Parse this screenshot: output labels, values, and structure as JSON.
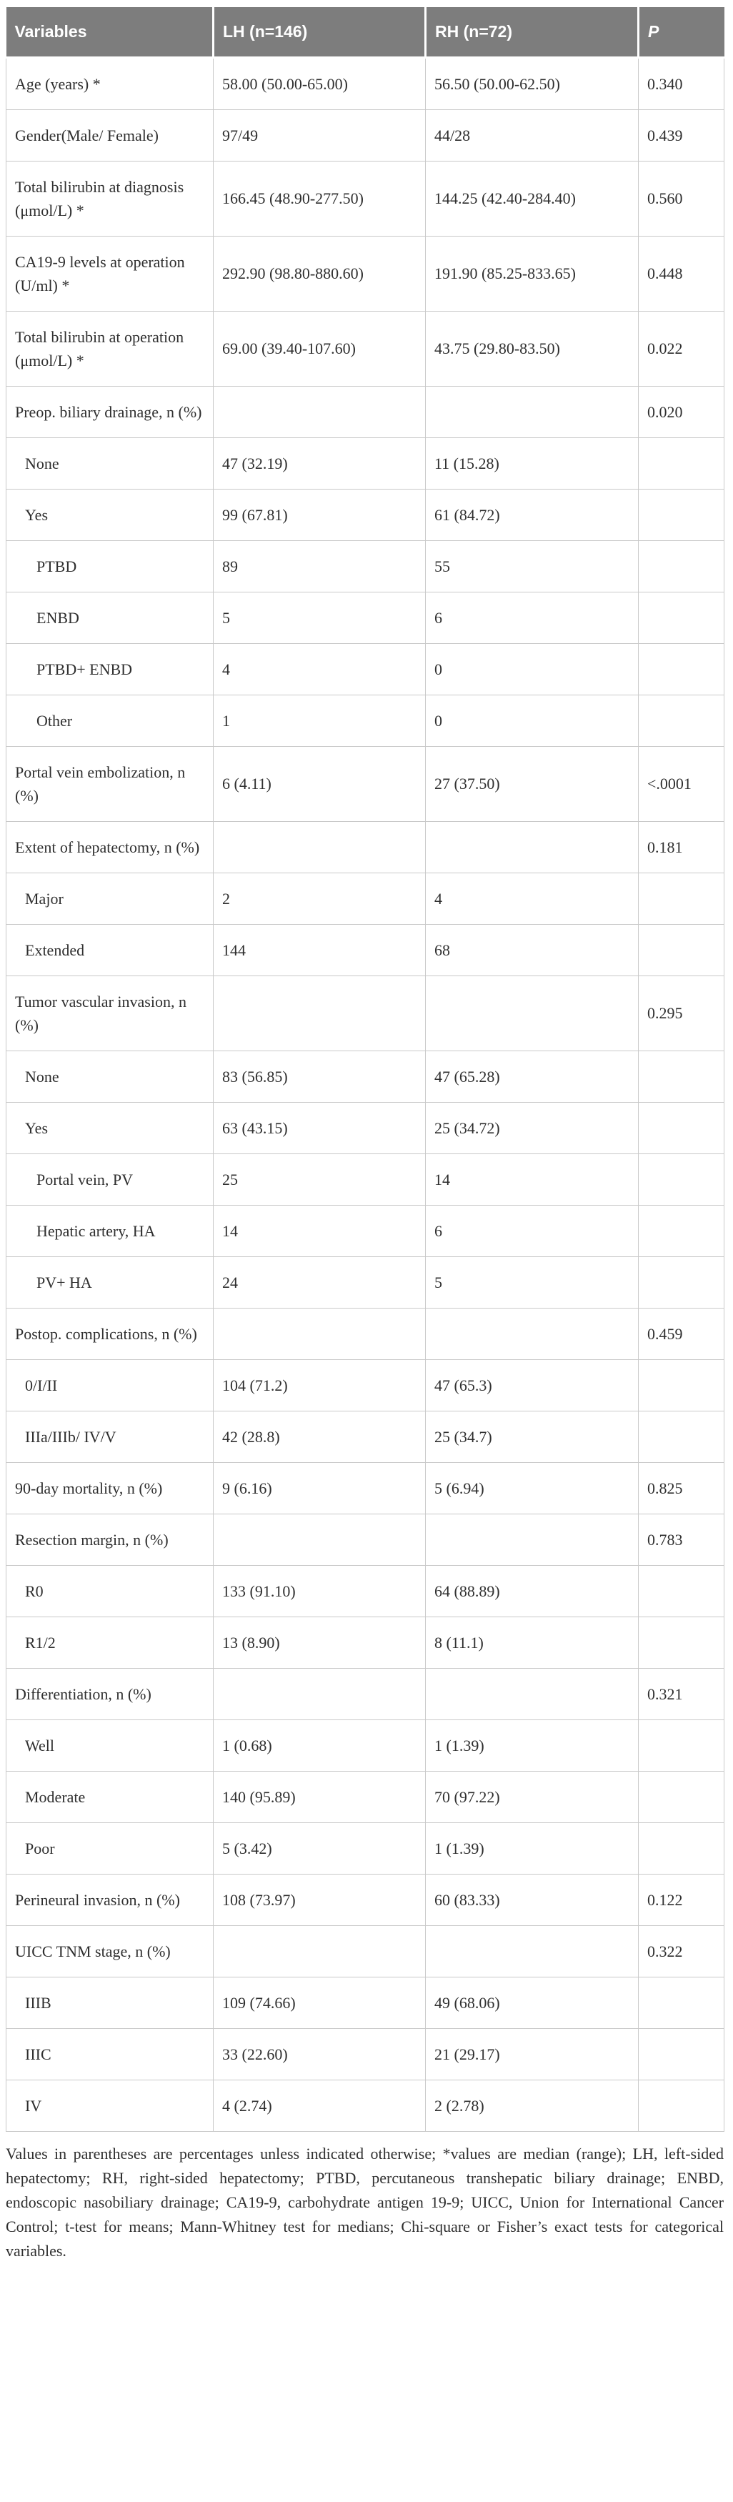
{
  "colors": {
    "header_bg": "#7d7d7d",
    "header_text": "#ffffff",
    "border": "#c9c9c9",
    "text": "#2f2f2f"
  },
  "table": {
    "columns": [
      "Variables",
      "LH (n=146)",
      "RH (n=72)",
      "P"
    ],
    "rows": [
      {
        "label": "Age (years) *",
        "indent": 0,
        "lh": "58.00 (50.00-65.00)",
        "rh": "56.50 (50.00-62.50)",
        "p": "0.340"
      },
      {
        "label": "Gender(Male/ Female)",
        "indent": 0,
        "lh": "97/49",
        "rh": "44/28",
        "p": "0.439"
      },
      {
        "label": "Total bilirubin at diagnosis (μmol/L) *",
        "indent": 0,
        "lh": "166.45 (48.90-277.50)",
        "rh": "144.25 (42.40-284.40)",
        "p": "0.560"
      },
      {
        "label": "CA19-9 levels at operation (U/ml) *",
        "indent": 0,
        "lh": "292.90 (98.80-880.60)",
        "rh": "191.90 (85.25-833.65)",
        "p": "0.448"
      },
      {
        "label": "Total bilirubin at operation (μmol/L) *",
        "indent": 0,
        "lh": "69.00 (39.40-107.60)",
        "rh": "43.75 (29.80-83.50)",
        "p": "0.022"
      },
      {
        "label": "Preop. biliary drainage, n (%)",
        "indent": 0,
        "lh": "",
        "rh": "",
        "p": "0.020"
      },
      {
        "label": "None",
        "indent": 1,
        "lh": "47 (32.19)",
        "rh": "11 (15.28)",
        "p": ""
      },
      {
        "label": "Yes",
        "indent": 1,
        "lh": "99 (67.81)",
        "rh": "61 (84.72)",
        "p": ""
      },
      {
        "label": "PTBD",
        "indent": 2,
        "lh": "89",
        "rh": "55",
        "p": ""
      },
      {
        "label": "ENBD",
        "indent": 2,
        "lh": "5",
        "rh": "6",
        "p": ""
      },
      {
        "label": "PTBD+ ENBD",
        "indent": 2,
        "lh": "4",
        "rh": "0",
        "p": ""
      },
      {
        "label": "Other",
        "indent": 2,
        "lh": "1",
        "rh": "0",
        "p": ""
      },
      {
        "label": "Portal vein embolization, n (%)",
        "indent": 0,
        "lh": "6 (4.11)",
        "rh": "27 (37.50)",
        "p": "<.0001"
      },
      {
        "label": "Extent of hepatectomy, n (%)",
        "indent": 0,
        "lh": "",
        "rh": "",
        "p": "0.181"
      },
      {
        "label": "Major",
        "indent": 1,
        "lh": "2",
        "rh": "4",
        "p": ""
      },
      {
        "label": "Extended",
        "indent": 1,
        "lh": "144",
        "rh": "68",
        "p": ""
      },
      {
        "label": "Tumor vascular invasion, n (%)",
        "indent": 0,
        "lh": "",
        "rh": "",
        "p": "0.295"
      },
      {
        "label": "None",
        "indent": 1,
        "lh": "83 (56.85)",
        "rh": "47 (65.28)",
        "p": ""
      },
      {
        "label": "Yes",
        "indent": 1,
        "lh": "63 (43.15)",
        "rh": "25 (34.72)",
        "p": ""
      },
      {
        "label": "Portal vein, PV",
        "indent": 2,
        "lh": "25",
        "rh": "14",
        "p": ""
      },
      {
        "label": "Hepatic artery, HA",
        "indent": 2,
        "lh": "14",
        "rh": "6",
        "p": ""
      },
      {
        "label": "PV+ HA",
        "indent": 2,
        "lh": "24",
        "rh": "5",
        "p": ""
      },
      {
        "label": "Postop. complications, n (%)",
        "indent": 0,
        "lh": "",
        "rh": "",
        "p": "0.459"
      },
      {
        "label": "0/I/II",
        "indent": 1,
        "lh": "104 (71.2)",
        "rh": "47 (65.3)",
        "p": ""
      },
      {
        "label": "IIIa/IIIb/ IV/V",
        "indent": 1,
        "lh": "42 (28.8)",
        "rh": "25 (34.7)",
        "p": ""
      },
      {
        "label": "90-day mortality, n (%)",
        "indent": 0,
        "lh": "9 (6.16)",
        "rh": "5 (6.94)",
        "p": "0.825"
      },
      {
        "label": "Resection margin, n (%)",
        "indent": 0,
        "lh": "",
        "rh": "",
        "p": "0.783"
      },
      {
        "label": "R0",
        "indent": 1,
        "lh": "133 (91.10)",
        "rh": "64 (88.89)",
        "p": ""
      },
      {
        "label": "R1/2",
        "indent": 1,
        "lh": "13 (8.90)",
        "rh": "8 (11.1)",
        "p": ""
      },
      {
        "label": "Differentiation, n (%)",
        "indent": 0,
        "lh": "",
        "rh": "",
        "p": "0.321"
      },
      {
        "label": "Well",
        "indent": 1,
        "lh": "1 (0.68)",
        "rh": "1 (1.39)",
        "p": ""
      },
      {
        "label": "Moderate",
        "indent": 1,
        "lh": "140 (95.89)",
        "rh": "70 (97.22)",
        "p": ""
      },
      {
        "label": "Poor",
        "indent": 1,
        "lh": "5 (3.42)",
        "rh": "1 (1.39)",
        "p": ""
      },
      {
        "label": "Perineural invasion, n (%)",
        "indent": 0,
        "lh": "108 (73.97)",
        "rh": "60 (83.33)",
        "p": "0.122"
      },
      {
        "label": "UICC TNM stage, n (%)",
        "indent": 0,
        "lh": "",
        "rh": "",
        "p": "0.322"
      },
      {
        "label": "IIIB",
        "indent": 1,
        "lh": "109 (74.66)",
        "rh": "49 (68.06)",
        "p": ""
      },
      {
        "label": "IIIC",
        "indent": 1,
        "lh": "33 (22.60)",
        "rh": "21 (29.17)",
        "p": ""
      },
      {
        "label": "IV",
        "indent": 1,
        "lh": "4 (2.74)",
        "rh": "2 (2.78)",
        "p": ""
      }
    ]
  },
  "footnote": "Values in parentheses are percentages unless indicated otherwise; *values are median (range); LH, left-sided hepatectomy; RH, right-sided hepatectomy; PTBD, percutaneous transhepatic biliary drainage; ENBD, endoscopic nasobiliary drainage; CA19-9, carbohydrate antigen 19-9; UICC, Union for International Cancer Control; t-test for means; Mann-Whitney test for medians; Chi-square or Fisher’s exact tests for categorical variables."
}
